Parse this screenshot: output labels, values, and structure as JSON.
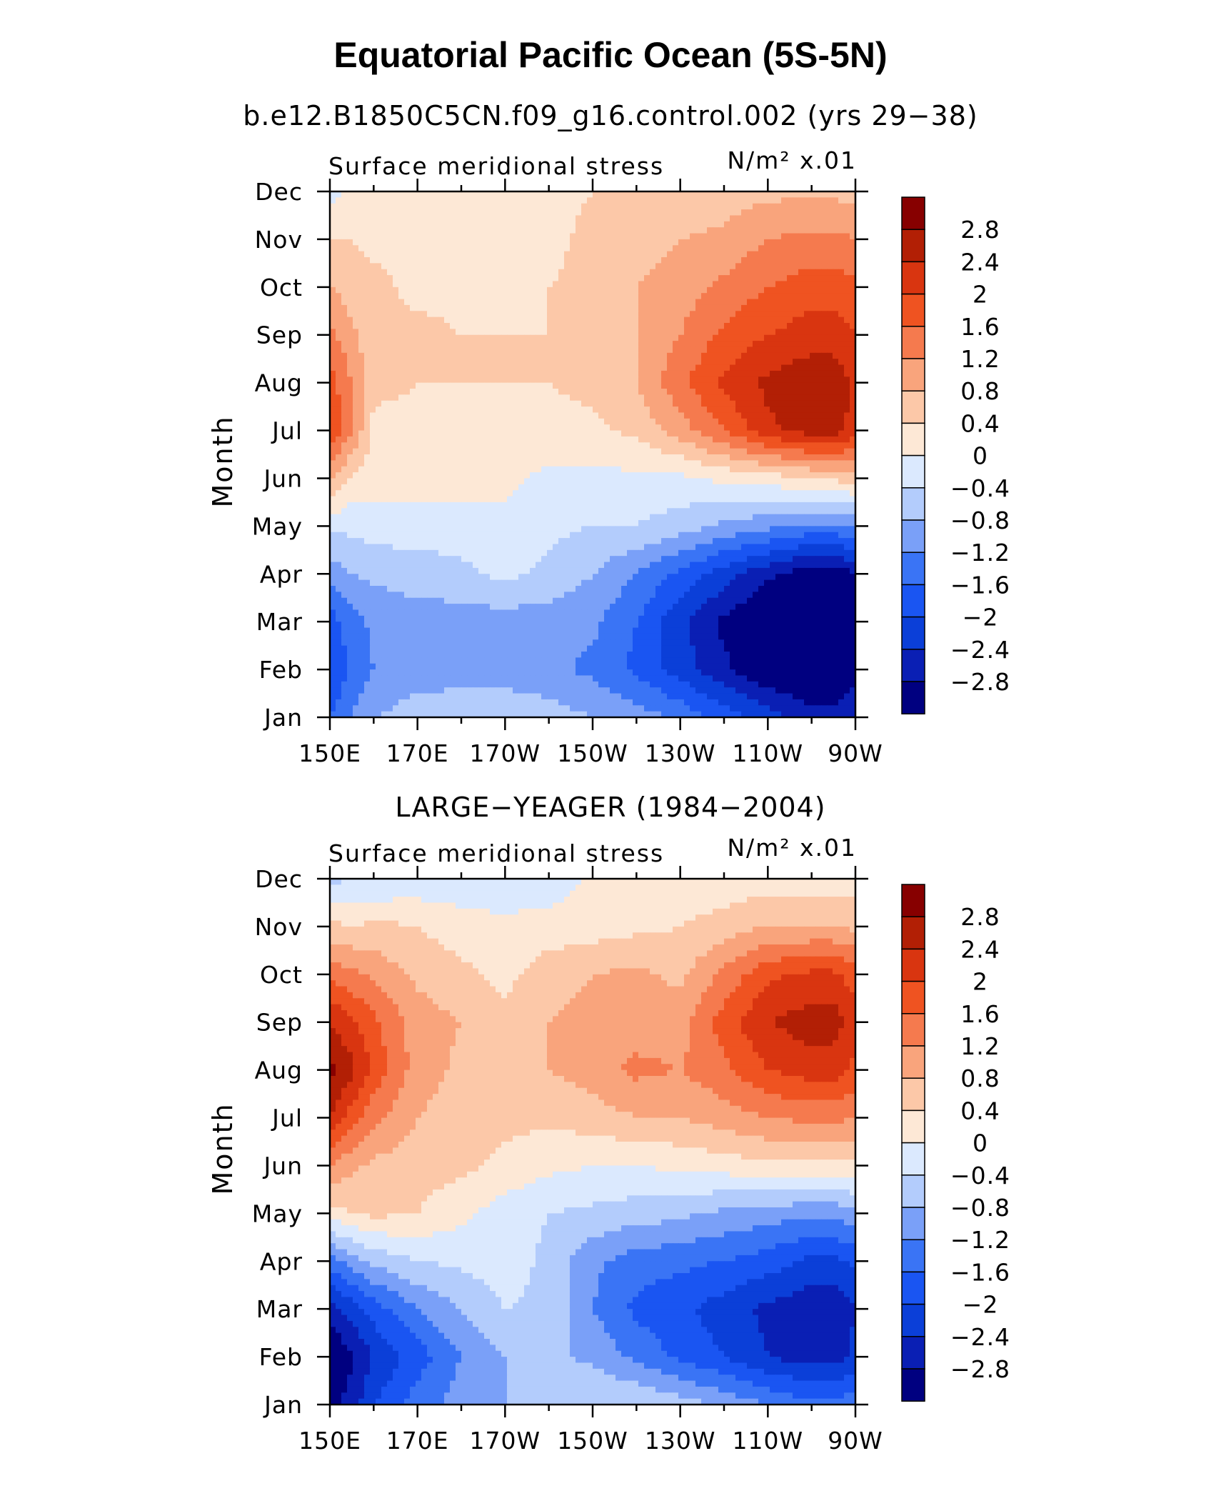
{
  "figure": {
    "title": "Equatorial Pacific Ocean (5S-5N)",
    "subtitle_model": "b.e12.B1850C5CN.f09_g16.control.002 (yrs 29−38)",
    "subtitle_obs": "LARGE−YEAGER (1984−2004)"
  },
  "chart_data": [
    {
      "type": "heatmap",
      "panel": "model",
      "title": "Surface meridional stress",
      "units": "N/m² x.01",
      "ylabel": "Month",
      "xlabel": "",
      "x_ticks": [
        "150E",
        "170E",
        "170W",
        "150W",
        "130W",
        "110W",
        "90W"
      ],
      "x_tick_lon": [
        150,
        170,
        190,
        210,
        230,
        250,
        270
      ],
      "y_ticks": [
        "Jan",
        "Feb",
        "Mar",
        "Apr",
        "May",
        "Jun",
        "Jul",
        "Aug",
        "Sep",
        "Oct",
        "Nov",
        "Dec"
      ],
      "xlim_lon": [
        150,
        270
      ],
      "colorbar_labels": [
        "2.8",
        "2.4",
        "2",
        "1.6",
        "1.2",
        "0.8",
        "0.4",
        "0",
        "−0.4",
        "−0.8",
        "−1.2",
        "−1.6",
        "−2",
        "−2.4",
        "−2.8"
      ],
      "levels": [
        -2.8,
        -2.4,
        -2,
        -1.6,
        -1.2,
        -0.8,
        -0.4,
        0,
        0.4,
        0.8,
        1.2,
        1.6,
        2,
        2.4,
        2.8
      ],
      "colors": [
        "#000080",
        "#0a1fb4",
        "#0b3fd8",
        "#1a55f2",
        "#3a74f5",
        "#7aa0f8",
        "#b3ccfc",
        "#dbe9fe",
        "#fde8d6",
        "#fcc8a8",
        "#f9a47c",
        "#f57a4e",
        "#ef5321",
        "#d93510",
        "#b21f05",
        "#870000"
      ],
      "lon": [
        150,
        155,
        160,
        170,
        180,
        190,
        200,
        210,
        220,
        230,
        240,
        250,
        260,
        265,
        270
      ],
      "month": [
        "Jan",
        "Feb",
        "Mar",
        "Apr",
        "May",
        "Jun",
        "Jul",
        "Aug",
        "Sep",
        "Oct",
        "Nov",
        "Dec"
      ],
      "values": [
        [
          -1.6,
          -1.2,
          -0.8,
          -0.6,
          -0.5,
          -0.5,
          -0.6,
          -0.8,
          -1.0,
          -1.3,
          -1.8,
          -2.2,
          -2.6,
          -2.6,
          -2.4
        ],
        [
          -2.0,
          -1.5,
          -1.2,
          -1.0,
          -1.0,
          -1.0,
          -1.1,
          -1.3,
          -1.7,
          -2.2,
          -2.7,
          -3.2,
          -3.4,
          -3.4,
          -3.0
        ],
        [
          -1.8,
          -1.4,
          -1.1,
          -1.0,
          -1.0,
          -1.0,
          -1.0,
          -1.1,
          -1.6,
          -2.3,
          -2.9,
          -3.3,
          -3.4,
          -3.4,
          -3.0
        ],
        [
          -1.0,
          -0.8,
          -0.7,
          -0.6,
          -0.5,
          -0.3,
          -0.5,
          -0.8,
          -1.2,
          -1.7,
          -2.2,
          -2.7,
          -3.1,
          -3.1,
          -2.8
        ],
        [
          -0.3,
          -0.3,
          -0.2,
          -0.2,
          -0.2,
          -0.1,
          -0.3,
          -0.4,
          -0.4,
          -0.6,
          -0.9,
          -1.1,
          -1.3,
          -1.3,
          -1.2
        ],
        [
          0.9,
          0.3,
          0.2,
          0.2,
          0.2,
          0.1,
          -0.1,
          -0.1,
          -0.1,
          -0.1,
          0.1,
          0.2,
          0.4,
          0.5,
          0.6
        ],
        [
          2.0,
          1.2,
          0.3,
          0.3,
          0.3,
          0.3,
          0.3,
          0.3,
          0.5,
          1.0,
          1.6,
          2.3,
          2.6,
          2.6,
          2.2
        ],
        [
          1.8,
          1.2,
          0.5,
          0.4,
          0.4,
          0.4,
          0.4,
          0.5,
          0.8,
          1.5,
          2.1,
          2.5,
          2.7,
          2.7,
          2.3
        ],
        [
          1.3,
          0.9,
          0.5,
          0.5,
          0.4,
          0.4,
          0.4,
          0.5,
          0.8,
          1.2,
          1.7,
          2.0,
          2.2,
          2.2,
          2.0
        ],
        [
          0.8,
          0.6,
          0.5,
          0.3,
          0.3,
          0.3,
          0.4,
          0.5,
          0.8,
          1.0,
          1.3,
          1.6,
          1.8,
          1.8,
          1.7
        ],
        [
          0.4,
          0.4,
          0.3,
          0.3,
          0.1,
          0.1,
          0.3,
          0.5,
          0.6,
          0.8,
          0.9,
          1.2,
          1.3,
          1.3,
          1.2
        ],
        [
          -0.2,
          0.1,
          0.3,
          0.1,
          0.1,
          0.1,
          0.3,
          0.4,
          0.5,
          0.5,
          0.6,
          0.7,
          0.7,
          0.7,
          0.6
        ]
      ]
    },
    {
      "type": "heatmap",
      "panel": "observations",
      "title": "Surface meridional stress",
      "units": "N/m² x.01",
      "ylabel": "Month",
      "xlabel": "",
      "x_ticks": [
        "150E",
        "170E",
        "170W",
        "150W",
        "130W",
        "110W",
        "90W"
      ],
      "x_tick_lon": [
        150,
        170,
        190,
        210,
        230,
        250,
        270
      ],
      "y_ticks": [
        "Jan",
        "Feb",
        "Mar",
        "Apr",
        "May",
        "Jun",
        "Jul",
        "Aug",
        "Sep",
        "Oct",
        "Nov",
        "Dec"
      ],
      "xlim_lon": [
        150,
        270
      ],
      "colorbar_labels": [
        "2.8",
        "2.4",
        "2",
        "1.6",
        "1.2",
        "0.8",
        "0.4",
        "0",
        "−0.4",
        "−0.8",
        "−1.2",
        "−1.6",
        "−2",
        "−2.4",
        "−2.8"
      ],
      "levels": [
        -2.8,
        -2.4,
        -2,
        -1.6,
        -1.2,
        -0.8,
        -0.4,
        0,
        0.4,
        0.8,
        1.2,
        1.6,
        2,
        2.4,
        2.8
      ],
      "colors": [
        "#000080",
        "#0a1fb4",
        "#0b3fd8",
        "#1a55f2",
        "#3a74f5",
        "#7aa0f8",
        "#b3ccfc",
        "#dbe9fe",
        "#fde8d6",
        "#fcc8a8",
        "#f9a47c",
        "#f57a4e",
        "#ef5321",
        "#d93510",
        "#b21f05",
        "#870000"
      ],
      "lon": [
        150,
        155,
        160,
        170,
        180,
        190,
        200,
        210,
        220,
        230,
        240,
        250,
        260,
        265,
        270
      ],
      "month": [
        "Jan",
        "Feb",
        "Mar",
        "Apr",
        "May",
        "Jun",
        "Jul",
        "Aug",
        "Sep",
        "Oct",
        "Nov",
        "Dec"
      ],
      "values": [
        [
          -3.0,
          -2.6,
          -2.0,
          -1.4,
          -1.0,
          -0.8,
          -0.5,
          -0.4,
          -0.4,
          -0.6,
          -0.9,
          -1.2,
          -1.5,
          -1.5,
          -1.3
        ],
        [
          -3.2,
          -2.9,
          -2.4,
          -1.8,
          -1.2,
          -0.8,
          -0.7,
          -0.9,
          -1.3,
          -1.7,
          -2.0,
          -2.4,
          -2.6,
          -2.6,
          -2.3
        ],
        [
          -2.6,
          -2.2,
          -1.8,
          -1.2,
          -0.8,
          -0.4,
          -0.5,
          -1.2,
          -1.7,
          -1.9,
          -2.2,
          -2.5,
          -2.7,
          -2.7,
          -2.4
        ],
        [
          -1.4,
          -1.0,
          -0.7,
          -0.4,
          -0.3,
          -0.2,
          -0.5,
          -1.1,
          -1.4,
          -1.5,
          -1.6,
          -1.8,
          -2.1,
          -2.1,
          -1.9
        ],
        [
          0.2,
          0.4,
          0.5,
          0.4,
          0.1,
          -0.2,
          -0.4,
          -0.5,
          -0.6,
          -0.7,
          -0.9,
          -1.0,
          -1.1,
          -1.1,
          -0.9
        ],
        [
          1.2,
          0.9,
          0.7,
          0.6,
          0.5,
          0.3,
          0.1,
          0.0,
          0.0,
          0.1,
          0.2,
          0.3,
          0.3,
          0.3,
          0.3
        ],
        [
          2.4,
          1.8,
          1.3,
          0.8,
          0.6,
          0.5,
          0.5,
          0.6,
          0.8,
          0.8,
          1.0,
          1.2,
          1.3,
          1.3,
          1.2
        ],
        [
          2.9,
          2.5,
          1.9,
          1.0,
          0.7,
          0.6,
          0.8,
          1.0,
          1.3,
          1.2,
          1.5,
          2.0,
          2.2,
          2.2,
          1.9
        ],
        [
          2.4,
          2.1,
          1.7,
          1.0,
          0.8,
          0.5,
          0.8,
          1.0,
          1.0,
          1.0,
          1.8,
          2.4,
          2.6,
          2.6,
          2.2
        ],
        [
          1.5,
          1.3,
          1.1,
          0.7,
          0.5,
          0.3,
          0.6,
          0.8,
          0.9,
          0.7,
          1.3,
          1.9,
          2.1,
          2.1,
          1.8
        ],
        [
          0.5,
          0.4,
          0.5,
          0.4,
          0.2,
          0.1,
          0.2,
          0.2,
          0.3,
          0.4,
          0.6,
          0.8,
          0.8,
          0.8,
          0.7
        ],
        [
          -0.5,
          -0.4,
          -0.4,
          -0.3,
          -0.3,
          -0.3,
          -0.3,
          0.1,
          0.2,
          0.1,
          0.1,
          0.2,
          0.2,
          0.2,
          0.2
        ]
      ]
    }
  ]
}
